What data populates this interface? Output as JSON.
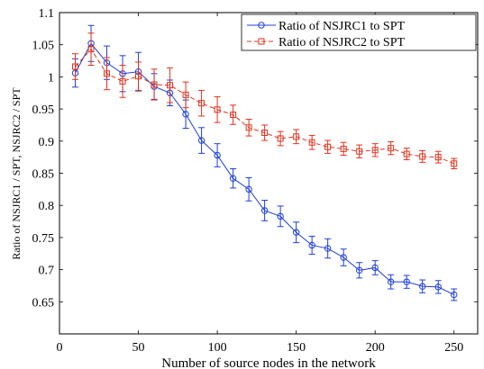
{
  "chart_data": {
    "type": "line",
    "title": "",
    "xlabel": "Number of source nodes in the network",
    "ylabel": "Ratio of NSJRC1 / SPT, NSJRC2 / SPT",
    "xlim": [
      0,
      265
    ],
    "ylim": [
      0.6,
      1.1
    ],
    "x_ticks": [
      0,
      50,
      100,
      150,
      200,
      250
    ],
    "x_tick_labels": [
      "0",
      "50",
      "100",
      "150",
      "200",
      "250"
    ],
    "y_ticks": [
      0.65,
      0.7,
      0.75,
      0.8,
      0.85,
      0.9,
      0.95,
      1,
      1.05,
      1.1
    ],
    "y_tick_labels": [
      "0.65",
      "0.7",
      "0.75",
      "0.8",
      "0.85",
      "0.9",
      "0.95",
      "1",
      "1.05",
      "1.1"
    ],
    "grid": false,
    "legend_position": "top-right",
    "x": [
      10,
      20,
      30,
      40,
      50,
      60,
      70,
      80,
      90,
      100,
      110,
      120,
      130,
      140,
      150,
      160,
      170,
      180,
      190,
      200,
      210,
      220,
      230,
      240,
      250
    ],
    "series": [
      {
        "name": "Ratio of NSJRC1 to SPT",
        "color": "#1f3fd6",
        "marker": "circle",
        "line": "solid",
        "values": [
          1.006,
          1.052,
          1.022,
          1.005,
          1.008,
          0.985,
          0.975,
          0.942,
          0.901,
          0.878,
          0.842,
          0.825,
          0.792,
          0.783,
          0.758,
          0.738,
          0.733,
          0.719,
          0.699,
          0.703,
          0.681,
          0.681,
          0.674,
          0.673,
          0.661
        ],
        "errors": [
          0.022,
          0.028,
          0.026,
          0.028,
          0.03,
          0.02,
          0.02,
          0.022,
          0.02,
          0.018,
          0.015,
          0.018,
          0.016,
          0.016,
          0.016,
          0.014,
          0.015,
          0.013,
          0.012,
          0.011,
          0.011,
          0.01,
          0.01,
          0.01,
          0.009
        ]
      },
      {
        "name": "Ratio of NSJRC2 to SPT",
        "color": "#e0321c",
        "marker": "square",
        "line": "dashed",
        "values": [
          1.016,
          1.043,
          1.005,
          0.993,
          1.001,
          0.988,
          0.987,
          0.972,
          0.959,
          0.949,
          0.941,
          0.921,
          0.913,
          0.904,
          0.907,
          0.898,
          0.891,
          0.888,
          0.884,
          0.886,
          0.889,
          0.88,
          0.876,
          0.875,
          0.865
        ],
        "errors": [
          0.02,
          0.025,
          0.025,
          0.025,
          0.022,
          0.024,
          0.027,
          0.02,
          0.02,
          0.02,
          0.015,
          0.013,
          0.012,
          0.011,
          0.011,
          0.011,
          0.01,
          0.01,
          0.01,
          0.01,
          0.01,
          0.009,
          0.009,
          0.009,
          0.008
        ]
      }
    ]
  }
}
